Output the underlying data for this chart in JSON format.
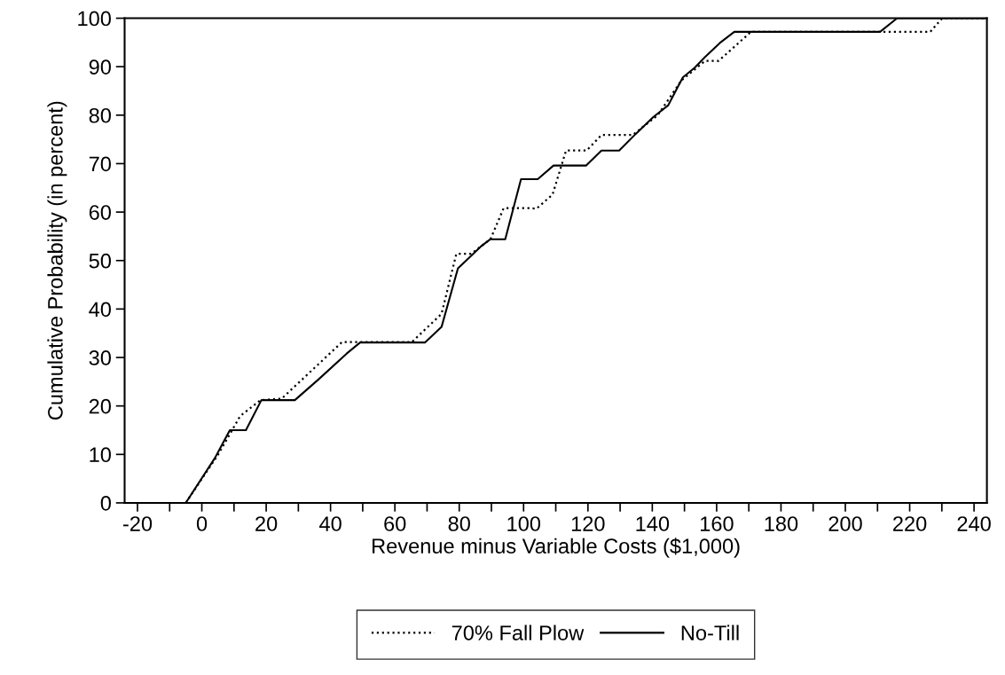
{
  "chart_data": {
    "type": "line",
    "xlabel": "Revenue minus Variable Costs ($1,000)",
    "ylabel": "Cumulative Probability (in percent)",
    "xlim": [
      -24,
      244
    ],
    "ylim": [
      0,
      100
    ],
    "xticks": [
      -20,
      {
        "value": -10,
        "label": null
      },
      0,
      {
        "value": 10,
        "label": null
      },
      20,
      {
        "value": 30,
        "label": null
      },
      40,
      {
        "value": 50,
        "label": null
      },
      60,
      {
        "value": 70,
        "label": null
      },
      80,
      {
        "value": 90,
        "label": null
      },
      100,
      {
        "value": 110,
        "label": null
      },
      120,
      {
        "value": 130,
        "label": null
      },
      140,
      {
        "value": 150,
        "label": null
      },
      160,
      {
        "value": 170,
        "label": null
      },
      180,
      {
        "value": 190,
        "label": null
      },
      200,
      {
        "value": 210,
        "label": null
      },
      220,
      {
        "value": 230,
        "label": null
      },
      240
    ],
    "yticks": [
      0,
      10,
      20,
      30,
      40,
      50,
      60,
      70,
      80,
      90,
      100
    ],
    "grid": false,
    "legend": "bottom",
    "marker": "none",
    "series": [
      {
        "name": "70% Fall Plow",
        "color": "#000000",
        "line_style": "dotted",
        "x": [
          -5,
          5.0,
          11.9,
          18.2,
          24.8,
          43.6,
          65.3,
          74.5,
          79.1,
          83.7,
          89.7,
          93.8,
          102.1,
          104.0,
          109.0,
          113.2,
          119.6,
          124.2,
          133.9,
          141.7,
          149.1,
          156.4,
          160.6,
          170.7,
          226.4,
          230.1,
          244
        ],
        "values": [
          0,
          9.9,
          17.9,
          21.2,
          21.5,
          33.2,
          33.2,
          39.0,
          51.4,
          51.4,
          54.4,
          60.8,
          60.8,
          60.7,
          63.6,
          72.7,
          72.7,
          75.9,
          75.9,
          80.0,
          87.2,
          91.2,
          91.2,
          97.2,
          97.2,
          100,
          100
        ]
      },
      {
        "name": "No-Till",
        "color": "#000000",
        "line_style": "solid",
        "x": [
          -5,
          4.1,
          8.7,
          13.7,
          18.5,
          28.9,
          36.3,
          45.0,
          49.2,
          69.4,
          74.5,
          79.6,
          82.3,
          86.7,
          89.7,
          94.3,
          99.2,
          104.4,
          109.3,
          119.4,
          124.2,
          129.7,
          134.8,
          140.3,
          144.9,
          149.5,
          153.2,
          156.4,
          161.0,
          165.5,
          210.8,
          216.1,
          244
        ],
        "values": [
          0,
          9.3,
          15.0,
          15.0,
          21.2,
          21.2,
          25.5,
          30.8,
          33.1,
          33.1,
          36.3,
          48.4,
          50.1,
          52.9,
          54.4,
          54.4,
          66.8,
          66.8,
          69.6,
          69.6,
          72.7,
          72.7,
          76.1,
          79.6,
          82.0,
          87.8,
          89.8,
          92.0,
          94.9,
          97.2,
          97.2,
          100,
          100
        ]
      }
    ]
  }
}
